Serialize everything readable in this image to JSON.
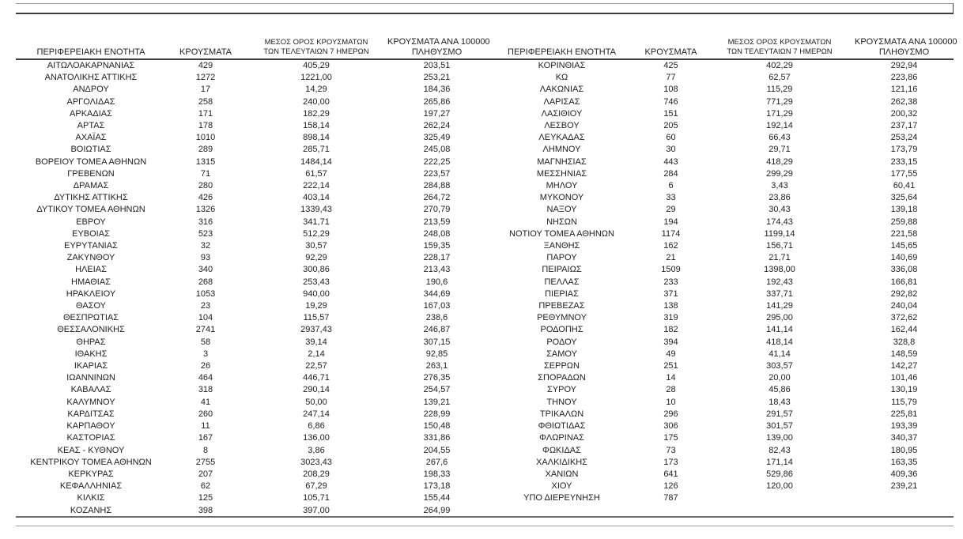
{
  "page": {
    "background": "#ffffff",
    "text_color": "#212121",
    "rule_dark": "#3c3c3c",
    "rule_light": "#9a9a9a"
  },
  "table": {
    "headers": {
      "region": "ΠΕΡΙΦΕΡΕΙΑΚΗ ΕΝΟΤΗΤΑ",
      "cases": "ΚΡΟΥΣΜΑΤΑ",
      "avg7_line1": "ΜΕΣΟΣ ΟΡΟΣ ΚΡΟΥΣΜΑΤΩΝ",
      "avg7_line2": "ΤΩΝ ΤΕΛΕΥΤΑΙΩΝ 7 ΗΜΕΡΩΝ",
      "per100k_line1": "ΚΡΟΥΣΜΑΤΑ ΑΝΑ 100000",
      "per100k_line2": "ΠΛΗΘΥΣΜΟ"
    },
    "left_rows": [
      [
        "ΑΙΤΩΛΟΑΚΑΡΝΑΝΙΑΣ",
        "429",
        "405,29",
        "203,51"
      ],
      [
        "ΑΝΑΤΟΛΙΚΗΣ ΑΤΤΙΚΗΣ",
        "1272",
        "1221,00",
        "253,21"
      ],
      [
        "ΑΝΔΡΟΥ",
        "17",
        "14,29",
        "184,36"
      ],
      [
        "ΑΡΓΟΛΙΔΑΣ",
        "258",
        "240,00",
        "265,86"
      ],
      [
        "ΑΡΚΑΔΙΑΣ",
        "171",
        "182,29",
        "197,27"
      ],
      [
        "ΑΡΤΑΣ",
        "178",
        "158,14",
        "262,24"
      ],
      [
        "ΑΧΑΪΑΣ",
        "1010",
        "898,14",
        "325,49"
      ],
      [
        "ΒΟΙΩΤΙΑΣ",
        "289",
        "285,71",
        "245,08"
      ],
      [
        "ΒΟΡΕΙΟΥ ΤΟΜΕΑ ΑΘΗΝΩΝ",
        "1315",
        "1484,14",
        "222,25"
      ],
      [
        "ΓΡΕΒΕΝΩΝ",
        "71",
        "61,57",
        "223,57"
      ],
      [
        "ΔΡΑΜΑΣ",
        "280",
        "222,14",
        "284,88"
      ],
      [
        "ΔΥΤΙΚΗΣ ΑΤΤΙΚΗΣ",
        "426",
        "403,14",
        "264,72"
      ],
      [
        "ΔΥΤΙΚΟΥ ΤΟΜΕΑ ΑΘΗΝΩΝ",
        "1326",
        "1339,43",
        "270,79"
      ],
      [
        "ΕΒΡΟΥ",
        "316",
        "341,71",
        "213,59"
      ],
      [
        "ΕΥΒΟΙΑΣ",
        "523",
        "512,29",
        "248,08"
      ],
      [
        "ΕΥΡΥΤΑΝΙΑΣ",
        "32",
        "30,57",
        "159,35"
      ],
      [
        "ΖΑΚΥΝΘΟΥ",
        "93",
        "92,29",
        "228,17"
      ],
      [
        "ΗΛΕΙΑΣ",
        "340",
        "300,86",
        "213,43"
      ],
      [
        "ΗΜΑΘΙΑΣ",
        "268",
        "253,43",
        "190,6"
      ],
      [
        "ΗΡΑΚΛΕΙΟΥ",
        "1053",
        "940,00",
        "344,69"
      ],
      [
        "ΘΑΣΟΥ",
        "23",
        "19,29",
        "167,03"
      ],
      [
        "ΘΕΣΠΡΩΤΙΑΣ",
        "104",
        "115,57",
        "238,6"
      ],
      [
        "ΘΕΣΣΑΛΟΝΙΚΗΣ",
        "2741",
        "2937,43",
        "246,87"
      ],
      [
        "ΘΗΡΑΣ",
        "58",
        "39,14",
        "307,15"
      ],
      [
        "ΙΘΑΚΗΣ",
        "3",
        "2,14",
        "92,85"
      ],
      [
        "ΙΚΑΡΙΑΣ",
        "26",
        "22,57",
        "263,1"
      ],
      [
        "ΙΩΑΝΝΙΝΩΝ",
        "464",
        "446,71",
        "276,35"
      ],
      [
        "ΚΑΒΑΛΑΣ",
        "318",
        "290,14",
        "254,57"
      ],
      [
        "ΚΑΛΥΜΝΟΥ",
        "41",
        "50,00",
        "139,21"
      ],
      [
        "ΚΑΡΔΙΤΣΑΣ",
        "260",
        "247,14",
        "228,99"
      ],
      [
        "ΚΑΡΠΑΘΟΥ",
        "11",
        "6,86",
        "150,48"
      ],
      [
        "ΚΑΣΤΟΡΙΑΣ",
        "167",
        "136,00",
        "331,86"
      ],
      [
        "ΚΕΑΣ - ΚΥΘΝΟΥ",
        "8",
        "3,86",
        "204,55"
      ],
      [
        "ΚΕΝΤΡΙΚΟΥ ΤΟΜΕΑ ΑΘΗΝΩΝ",
        "2755",
        "3023,43",
        "267,6"
      ],
      [
        "ΚΕΡΚΥΡΑΣ",
        "207",
        "208,29",
        "198,33"
      ],
      [
        "ΚΕΦΑΛΛΗΝΙΑΣ",
        "62",
        "67,29",
        "173,18"
      ],
      [
        "ΚΙΛΚΙΣ",
        "125",
        "105,71",
        "155,44"
      ],
      [
        "ΚΟΖΑΝΗΣ",
        "398",
        "397,00",
        "264,99"
      ]
    ],
    "right_rows": [
      [
        "ΚΟΡΙΝΘΙΑΣ",
        "425",
        "402,29",
        "292,94"
      ],
      [
        "ΚΩ",
        "77",
        "62,57",
        "223,86"
      ],
      [
        "ΛΑΚΩΝΙΑΣ",
        "108",
        "115,29",
        "121,16"
      ],
      [
        "ΛΑΡΙΣΑΣ",
        "746",
        "771,29",
        "262,38"
      ],
      [
        "ΛΑΣΙΘΙΟΥ",
        "151",
        "171,29",
        "200,32"
      ],
      [
        "ΛΕΣΒΟΥ",
        "205",
        "192,14",
        "237,17"
      ],
      [
        "ΛΕΥΚΑΔΑΣ",
        "60",
        "66,43",
        "253,24"
      ],
      [
        "ΛΗΜΝΟΥ",
        "30",
        "29,71",
        "173,79"
      ],
      [
        "ΜΑΓΝΗΣΙΑΣ",
        "443",
        "418,29",
        "233,15"
      ],
      [
        "ΜΕΣΣΗΝΙΑΣ",
        "284",
        "299,29",
        "177,55"
      ],
      [
        "ΜΗΛΟΥ",
        "6",
        "3,43",
        "60,41"
      ],
      [
        "ΜΥΚΟΝΟΥ",
        "33",
        "23,86",
        "325,64"
      ],
      [
        "ΝΑΞΟΥ",
        "29",
        "30,43",
        "139,18"
      ],
      [
        "ΝΗΣΩΝ",
        "194",
        "174,43",
        "259,88"
      ],
      [
        "ΝΟΤΙΟΥ ΤΟΜΕΑ ΑΘΗΝΩΝ",
        "1174",
        "1199,14",
        "221,58"
      ],
      [
        "ΞΑΝΘΗΣ",
        "162",
        "156,71",
        "145,65"
      ],
      [
        "ΠΑΡΟΥ",
        "21",
        "21,71",
        "140,69"
      ],
      [
        "ΠΕΙΡΑΙΩΣ",
        "1509",
        "1398,00",
        "336,08"
      ],
      [
        "ΠΕΛΛΑΣ",
        "233",
        "192,43",
        "166,81"
      ],
      [
        "ΠΙΕΡΙΑΣ",
        "371",
        "337,71",
        "292,82"
      ],
      [
        "ΠΡΕΒΕΖΑΣ",
        "138",
        "141,29",
        "240,04"
      ],
      [
        "ΡΕΘΥΜΝΟΥ",
        "319",
        "295,00",
        "372,62"
      ],
      [
        "ΡΟΔΟΠΗΣ",
        "182",
        "141,14",
        "162,44"
      ],
      [
        "ΡΟΔΟΥ",
        "394",
        "418,14",
        "328,8"
      ],
      [
        "ΣΑΜΟΥ",
        "49",
        "41,14",
        "148,59"
      ],
      [
        "ΣΕΡΡΩΝ",
        "251",
        "303,57",
        "142,27"
      ],
      [
        "ΣΠΟΡΑΔΩΝ",
        "14",
        "20,00",
        "101,46"
      ],
      [
        "ΣΥΡΟΥ",
        "28",
        "45,86",
        "130,19"
      ],
      [
        "ΤΗΝΟΥ",
        "10",
        "18,43",
        "115,79"
      ],
      [
        "ΤΡΙΚΑΛΩΝ",
        "296",
        "291,57",
        "225,81"
      ],
      [
        "ΦΘΙΩΤΙΔΑΣ",
        "306",
        "301,57",
        "193,39"
      ],
      [
        "ΦΛΩΡΙΝΑΣ",
        "175",
        "139,00",
        "340,37"
      ],
      [
        "ΦΩΚΙΔΑΣ",
        "73",
        "82,43",
        "180,95"
      ],
      [
        "ΧΑΛΚΙΔΙΚΗΣ",
        "173",
        "171,14",
        "163,35"
      ],
      [
        "ΧΑΝΙΩΝ",
        "641",
        "529,86",
        "409,36"
      ],
      [
        "ΧΙΟΥ",
        "126",
        "120,00",
        "239,21"
      ],
      [
        "ΥΠΟ ΔΙΕΡΕΥΝΗΣΗ",
        "787",
        "",
        ""
      ]
    ]
  }
}
